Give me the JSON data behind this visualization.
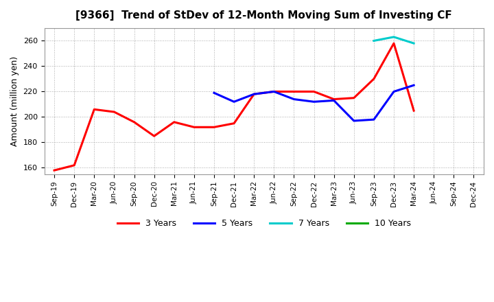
{
  "title": "[9366]  Trend of StDev of 12-Month Moving Sum of Investing CF",
  "ylabel": "Amount (million yen)",
  "background_color": "#ffffff",
  "grid_color": "#aaaaaa",
  "ylim": [
    155,
    270
  ],
  "yticks": [
    160,
    180,
    200,
    220,
    240,
    260
  ],
  "series": {
    "3 Years": {
      "color": "#ff0000",
      "x": [
        "Sep-19",
        "Dec-19",
        "Mar-20",
        "Jun-20",
        "Sep-20",
        "Dec-20",
        "Mar-21",
        "Jun-21",
        "Sep-21",
        "Dec-21",
        "Mar-22",
        "Jun-22",
        "Sep-22",
        "Dec-22",
        "Mar-23",
        "Jun-23",
        "Sep-23",
        "Dec-23",
        "Mar-24",
        "Jun-24"
      ],
      "y": [
        158,
        162,
        206,
        204,
        196,
        185,
        196,
        192,
        192,
        195,
        218,
        220,
        220,
        220,
        214,
        215,
        230,
        258,
        205,
        null
      ]
    },
    "5 Years": {
      "color": "#0000ff",
      "x": [
        "Sep-21",
        "Dec-21",
        "Mar-22",
        "Jun-22",
        "Sep-22",
        "Dec-22",
        "Mar-23",
        "Jun-23",
        "Sep-23",
        "Dec-23",
        "Mar-24",
        "Jun-24"
      ],
      "y": [
        219,
        212,
        218,
        220,
        214,
        212,
        213,
        197,
        198,
        220,
        225,
        null
      ]
    },
    "7 Years": {
      "color": "#00cccc",
      "x": [
        "Sep-23",
        "Dec-23",
        "Mar-24",
        "Jun-24"
      ],
      "y": [
        260,
        263,
        258,
        null
      ]
    },
    "10 Years": {
      "color": "#00aa00",
      "x": [
        "Sep-23",
        "Dec-23",
        "Mar-24",
        "Jun-24"
      ],
      "y": [
        null,
        null,
        null,
        null
      ]
    }
  },
  "xticks": [
    "Sep-19",
    "Dec-19",
    "Mar-20",
    "Jun-20",
    "Sep-20",
    "Dec-20",
    "Mar-21",
    "Jun-21",
    "Sep-21",
    "Dec-21",
    "Mar-22",
    "Jun-22",
    "Sep-22",
    "Dec-22",
    "Mar-23",
    "Jun-23",
    "Sep-23",
    "Dec-23",
    "Mar-24",
    "Jun-24",
    "Sep-24",
    "Dec-24"
  ],
  "legend_entries": [
    "3 Years",
    "5 Years",
    "7 Years",
    "10 Years"
  ],
  "legend_colors": [
    "#ff0000",
    "#0000ff",
    "#00cccc",
    "#00aa00"
  ]
}
